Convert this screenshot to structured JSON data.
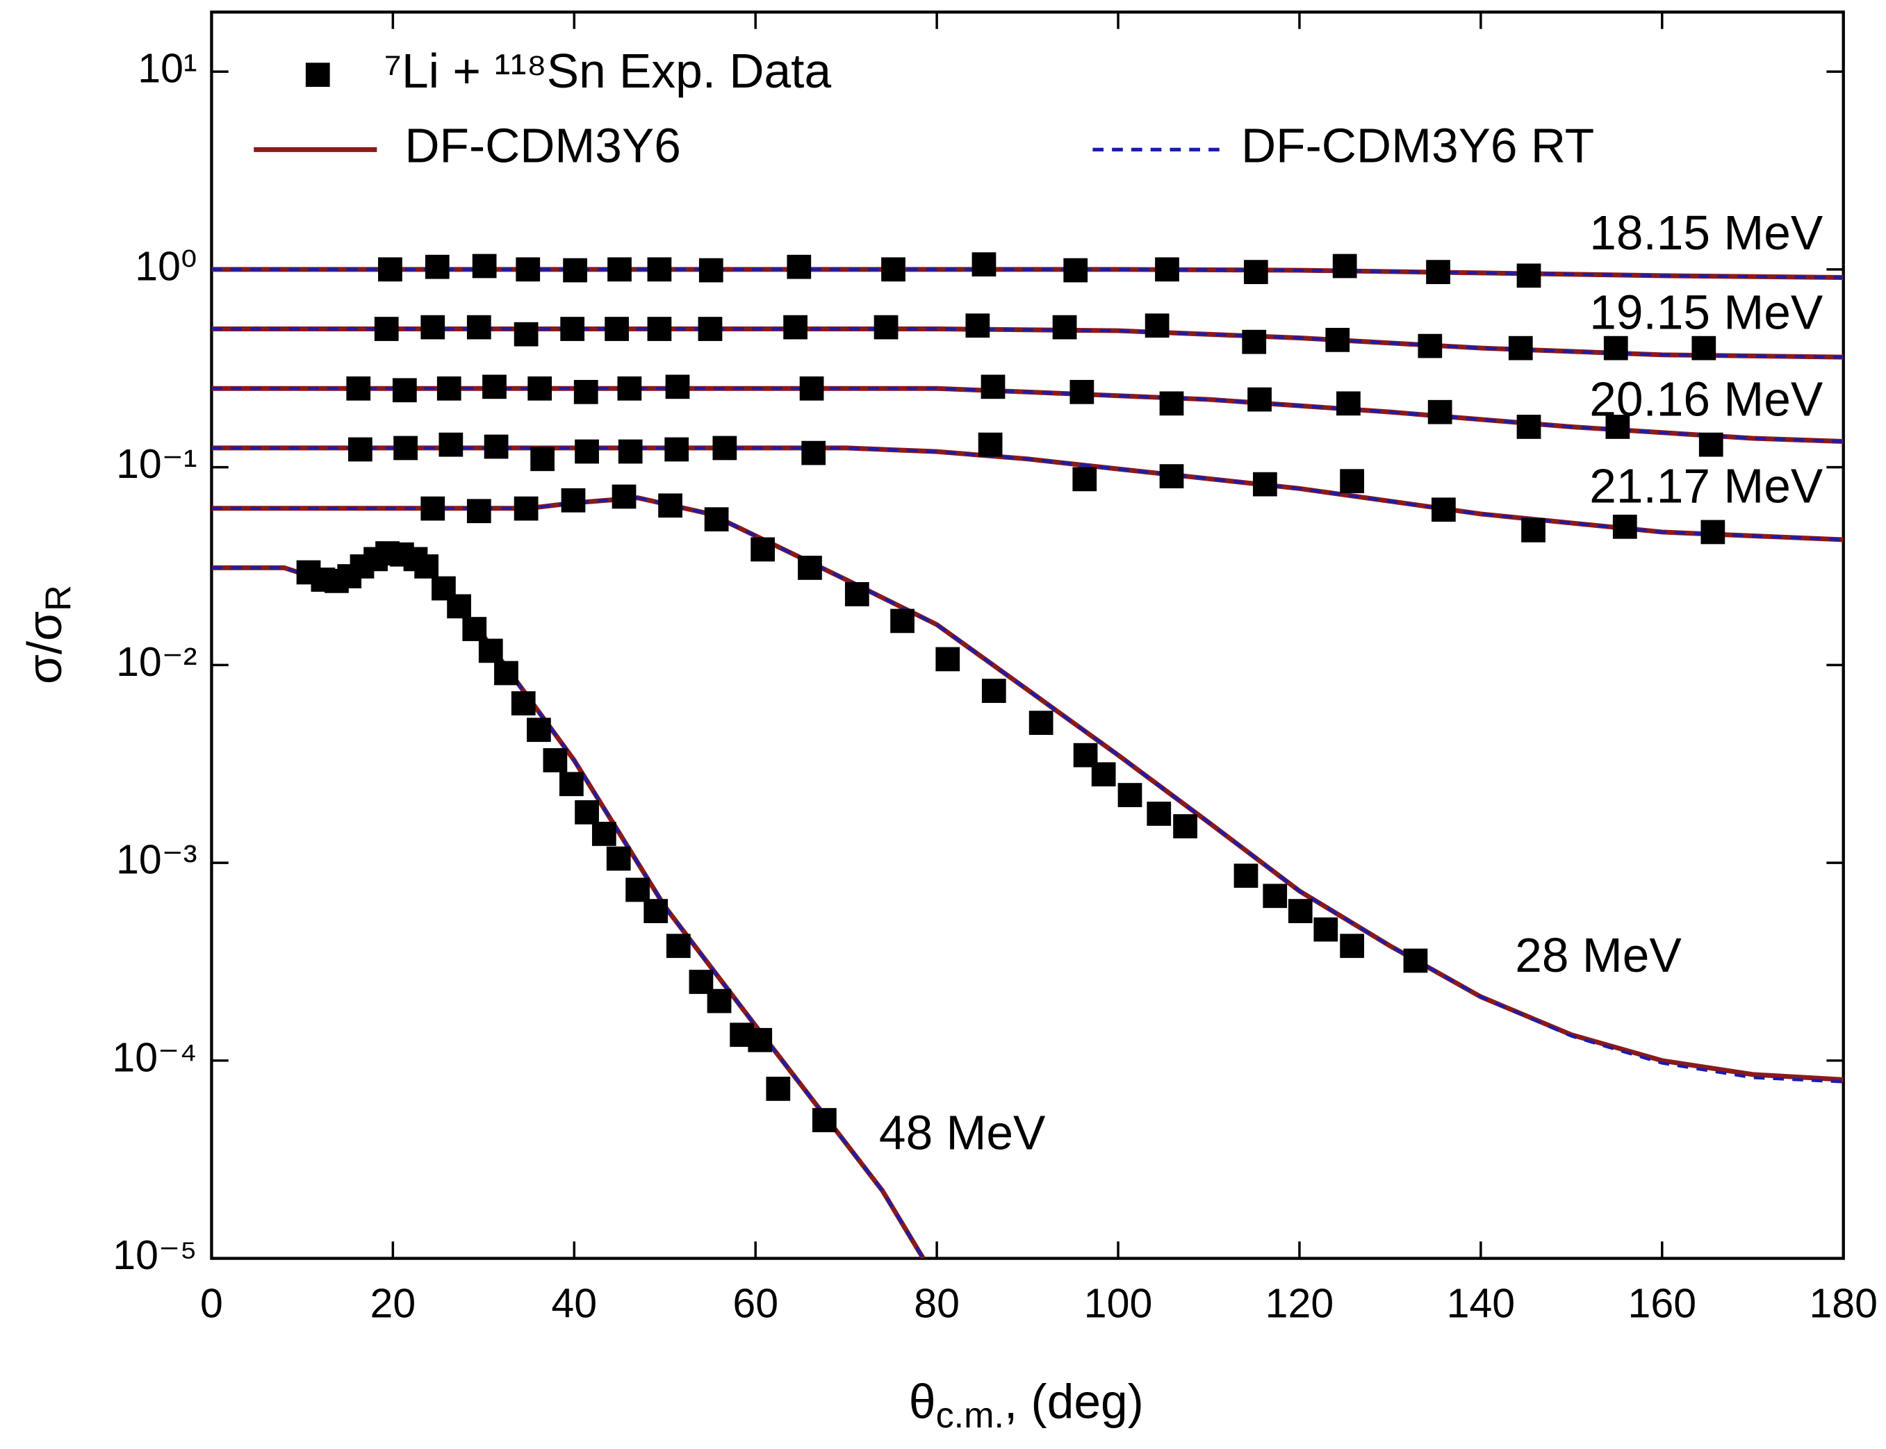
{
  "chart_data": {
    "type": "line",
    "ylabel": {
      "text": "σ/σ",
      "sub": "R"
    },
    "xlabel": {
      "text": "θ",
      "sub": "c.m.",
      "tail": ", (deg)"
    },
    "xlim": [
      0,
      180
    ],
    "ylim": [
      1e-05,
      20
    ],
    "log_y": true,
    "xticks": [
      0,
      20,
      40,
      60,
      80,
      100,
      120,
      140,
      160,
      180
    ],
    "yticks": [
      {
        "value": 1e-05,
        "label": "10⁻⁵"
      },
      {
        "value": 0.0001,
        "label": "10⁻⁴"
      },
      {
        "value": 0.001,
        "label": "10⁻³"
      },
      {
        "value": 0.01,
        "label": "10⁻²"
      },
      {
        "value": 0.1,
        "label": "10⁻¹"
      },
      {
        "value": 1,
        "label": "10⁰"
      },
      {
        "value": 10,
        "label": "10¹"
      }
    ],
    "legend": {
      "data": "⁷Li + ¹¹⁸Sn Exp. Data",
      "model": "DF-CDM3Y6",
      "model_rt": "DF-CDM3Y6 RT"
    },
    "colors": {
      "data": "#000000",
      "model": "#8b1a1a",
      "model_rt": "#1c1ca8"
    },
    "datasets": [
      {
        "label": "18.15 MeV",
        "x": [
          19.7,
          24.9,
          30.1,
          34.9,
          40.1,
          45.0,
          49.4,
          55.1,
          64.8,
          75.2,
          85.2,
          95.3,
          105.4,
          115.2,
          125.0,
          135.3,
          145.3
        ],
        "values": [
          1.0,
          1.03,
          1.04,
          1.0,
          0.99,
          1.0,
          1.0,
          0.99,
          1.03,
          1.0,
          1.06,
          0.99,
          1.0,
          0.97,
          1.04,
          0.97,
          0.93
        ],
        "model_x": [
          0,
          100,
          120,
          140,
          160,
          180
        ],
        "model": [
          1.0,
          1.0,
          0.99,
          0.96,
          0.93,
          0.91
        ],
        "model_rt": [
          1.0,
          1.0,
          0.99,
          0.96,
          0.93,
          0.91
        ]
      },
      {
        "label": "19.15 MeV",
        "x": [
          19.3,
          24.4,
          29.5,
          34.7,
          39.8,
          44.7,
          49.4,
          55.0,
          64.4,
          74.4,
          84.5,
          94.1,
          104.3,
          115.0,
          124.2,
          134.4,
          144.4,
          154.9,
          164.6
        ],
        "values": [
          0.5,
          0.51,
          0.51,
          0.47,
          0.5,
          0.5,
          0.5,
          0.5,
          0.51,
          0.51,
          0.52,
          0.51,
          0.52,
          0.43,
          0.44,
          0.41,
          0.4,
          0.4,
          0.4
        ],
        "model_x": [
          0,
          80,
          100,
          120,
          140,
          160,
          180
        ],
        "model": [
          0.5,
          0.5,
          0.49,
          0.45,
          0.4,
          0.37,
          0.36
        ],
        "model_rt": [
          0.5,
          0.5,
          0.49,
          0.45,
          0.4,
          0.37,
          0.36
        ]
      },
      {
        "label": "20.16 MeV",
        "x": [
          16.2,
          21.3,
          26.2,
          31.2,
          36.2,
          41.3,
          46.1,
          51.4,
          66.2,
          86.2,
          96.0,
          105.9,
          115.6,
          125.4,
          135.5,
          145.3,
          155.1,
          165.4
        ],
        "values": [
          0.25,
          0.245,
          0.25,
          0.255,
          0.25,
          0.24,
          0.25,
          0.255,
          0.25,
          0.255,
          0.24,
          0.21,
          0.22,
          0.21,
          0.19,
          0.16,
          0.16,
          0.13
        ],
        "model_x": [
          0,
          80,
          90,
          110,
          130,
          150,
          170,
          180
        ],
        "model": [
          0.25,
          0.25,
          0.24,
          0.22,
          0.19,
          0.16,
          0.14,
          0.135
        ],
        "model_rt": [
          0.25,
          0.25,
          0.24,
          0.22,
          0.19,
          0.16,
          0.14,
          0.135
        ]
      },
      {
        "label": "21.17 MeV",
        "x": [
          16.4,
          21.4,
          26.4,
          31.4,
          36.5,
          41.4,
          46.2,
          51.3,
          56.6,
          66.4,
          85.9,
          96.3,
          105.9,
          116.2,
          125.8,
          135.9,
          145.8,
          155.9,
          165.6
        ],
        "values": [
          0.123,
          0.125,
          0.13,
          0.127,
          0.11,
          0.12,
          0.12,
          0.123,
          0.125,
          0.118,
          0.13,
          0.087,
          0.09,
          0.082,
          0.085,
          0.061,
          0.048,
          0.05,
          0.047
        ],
        "model_x": [
          0,
          70,
          80,
          90,
          100,
          120,
          140,
          160,
          180
        ],
        "model": [
          0.125,
          0.125,
          0.12,
          0.11,
          0.098,
          0.078,
          0.058,
          0.047,
          0.043
        ],
        "model_rt": [
          0.125,
          0.125,
          0.12,
          0.11,
          0.098,
          0.078,
          0.058,
          0.047,
          0.043
        ]
      },
      {
        "label": "28 MeV",
        "x": [
          24.4,
          29.5,
          34.7,
          39.9,
          45.5,
          50.6,
          55.7,
          60.8,
          66.0,
          71.2,
          76.2,
          81.2,
          86.3,
          91.5,
          96.4,
          98.4,
          101.3,
          104.5,
          107.4,
          114.1,
          117.3,
          120.1,
          122.9,
          125.8,
          132.8
        ],
        "values": [
          0.0618,
          0.06,
          0.0618,
          0.068,
          0.071,
          0.064,
          0.0545,
          0.0384,
          0.031,
          0.0228,
          0.0167,
          0.0107,
          0.0074,
          0.0051,
          0.0035,
          0.0028,
          0.0022,
          0.00177,
          0.00153,
          0.00086,
          0.00068,
          0.00057,
          0.00046,
          0.00038,
          0.00032
        ],
        "model_x": [
          0,
          20,
          35,
          40,
          47,
          55,
          60,
          70,
          80,
          90,
          100,
          110,
          120,
          130,
          140,
          150,
          160,
          170,
          180
        ],
        "model": [
          0.062,
          0.062,
          0.062,
          0.066,
          0.07,
          0.058,
          0.045,
          0.027,
          0.016,
          0.0075,
          0.0035,
          0.0016,
          0.00072,
          0.00038,
          0.00021,
          0.000135,
          0.0001,
          8.5e-05,
          8e-05
        ],
        "model_rt": [
          0.062,
          0.062,
          0.062,
          0.066,
          0.07,
          0.058,
          0.045,
          0.027,
          0.016,
          0.0075,
          0.0035,
          0.0016,
          0.00072,
          0.00038,
          0.00021,
          0.000133,
          9.7e-05,
          8.2e-05,
          7.8e-05
        ]
      },
      {
        "label": "48 MeV",
        "x": [
          10.7,
          12.3,
          13.8,
          15.2,
          16.6,
          18.1,
          19.4,
          21.0,
          22.5,
          23.7,
          25.6,
          27.3,
          29.0,
          30.8,
          32.5,
          34.4,
          36.1,
          37.9,
          39.7,
          41.4,
          43.3,
          44.9,
          47.0,
          49.0,
          51.5,
          54.0,
          56.0,
          58.5,
          60.5,
          62.5,
          67.6
        ],
        "values": [
          0.0294,
          0.027,
          0.0266,
          0.0281,
          0.0315,
          0.0343,
          0.0367,
          0.0362,
          0.0343,
          0.0315,
          0.0244,
          0.0198,
          0.0152,
          0.0118,
          0.0091,
          0.0064,
          0.0047,
          0.0033,
          0.0025,
          0.0018,
          0.0014,
          0.00105,
          0.00073,
          0.00057,
          0.00038,
          0.00025,
          0.0002,
          0.000135,
          0.000127,
          7.2e-05,
          5e-05
        ],
        "model_x": [
          0,
          8,
          10,
          13,
          16,
          20,
          24,
          30,
          40,
          50,
          60,
          68,
          74,
          78.5
        ],
        "model": [
          0.031,
          0.031,
          0.029,
          0.027,
          0.031,
          0.036,
          0.03,
          0.014,
          0.0033,
          0.0006,
          0.00015,
          5e-05,
          2.2e-05,
          1e-05
        ],
        "model_rt": [
          0.031,
          0.031,
          0.029,
          0.027,
          0.031,
          0.036,
          0.03,
          0.014,
          0.0033,
          0.0006,
          0.00015,
          5e-05,
          2.2e-05,
          1e-05
        ]
      }
    ]
  }
}
